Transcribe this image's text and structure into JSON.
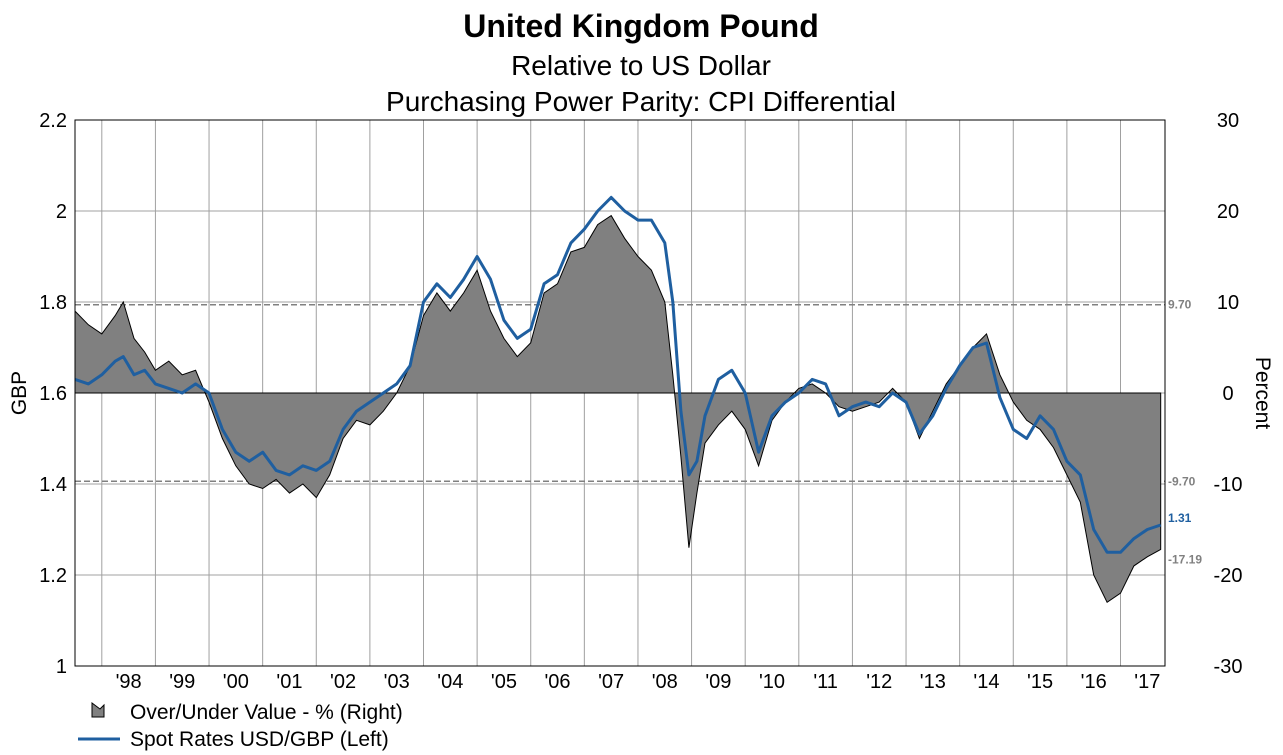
{
  "title": "United Kingdom Pound",
  "subtitle_1": "Relative to US Dollar",
  "subtitle_2": "Purchasing Power Parity: CPI Differential",
  "colors": {
    "area_fill": "#808080",
    "area_stroke": "#000000",
    "spot_line": "#1f5fa0",
    "grid": "#a0a0a0",
    "ref_line": "#808080"
  },
  "chart_data": {
    "type": "line",
    "title": "United Kingdom Pound",
    "subtitle": [
      "Relative to US Dollar",
      "Purchasing Power Parity: CPI Differential"
    ],
    "ylabel_left": "GBP",
    "ylabel_right": "Percent",
    "y_left_lim": [
      1.0,
      2.2
    ],
    "y_left_ticks": [
      "1",
      "1.2",
      "1.4",
      "1.6",
      "1.8",
      "2",
      "2.2"
    ],
    "y_left_tick_values": [
      1.0,
      1.2,
      1.4,
      1.6,
      1.8,
      2.0,
      2.2
    ],
    "y_right_lim": [
      -30,
      30
    ],
    "y_right_ticks": [
      "-30",
      "-20",
      "-10",
      "0",
      "10",
      "20",
      "30"
    ],
    "y_right_tick_values": [
      -30,
      -20,
      -10,
      0,
      10,
      20,
      30
    ],
    "x_lim": [
      1997.5,
      2017.83
    ],
    "x_tick_labels": [
      "'98",
      "'99",
      "'00",
      "'01",
      "'02",
      "'03",
      "'04",
      "'05",
      "'06",
      "'07",
      "'08",
      "'09",
      "'10",
      "'11",
      "'12",
      "'13",
      "'14",
      "'15",
      "'16",
      "'17"
    ],
    "x_tick_years": [
      1998,
      1999,
      2000,
      2001,
      2002,
      2003,
      2004,
      2005,
      2006,
      2007,
      2008,
      2009,
      2010,
      2011,
      2012,
      2013,
      2014,
      2015,
      2016,
      2017
    ],
    "grid": true,
    "legend_position": "bottom-left",
    "reference_lines": [
      {
        "axis": "right",
        "value": 9.7,
        "label": "9.70"
      },
      {
        "axis": "right",
        "value": -9.7,
        "label": "-9.70"
      }
    ],
    "end_labels": [
      {
        "series": "Spot Rates USD/GBP  (Left)",
        "label": "1.31"
      },
      {
        "series": "Over/Under Value - %  (Right)",
        "label": "-17.19"
      }
    ],
    "series": [
      {
        "name": "Over/Under Value - %  (Right)",
        "type": "area",
        "axis": "right",
        "x": [
          1997.5,
          1997.75,
          1998.0,
          1998.25,
          1998.4,
          1998.6,
          1998.8,
          1999.0,
          1999.25,
          1999.5,
          1999.75,
          2000.0,
          2000.25,
          2000.5,
          2000.75,
          2001.0,
          2001.25,
          2001.5,
          2001.75,
          2002.0,
          2002.25,
          2002.5,
          2002.75,
          2003.0,
          2003.25,
          2003.5,
          2003.75,
          2004.0,
          2004.25,
          2004.5,
          2004.75,
          2005.0,
          2005.25,
          2005.5,
          2005.75,
          2006.0,
          2006.25,
          2006.5,
          2006.75,
          2007.0,
          2007.25,
          2007.5,
          2007.75,
          2008.0,
          2008.25,
          2008.5,
          2008.65,
          2008.8,
          2008.95,
          2009.1,
          2009.25,
          2009.5,
          2009.75,
          2010.0,
          2010.25,
          2010.5,
          2010.75,
          2011.0,
          2011.25,
          2011.5,
          2011.75,
          2012.0,
          2012.25,
          2012.5,
          2012.75,
          2013.0,
          2013.25,
          2013.5,
          2013.75,
          2014.0,
          2014.25,
          2014.5,
          2014.75,
          2015.0,
          2015.25,
          2015.5,
          2015.75,
          2016.0,
          2016.25,
          2016.5,
          2016.75,
          2017.0,
          2017.25,
          2017.5,
          2017.75
        ],
        "values": [
          9.0,
          7.5,
          6.5,
          8.5,
          10.0,
          6.0,
          4.5,
          2.5,
          3.5,
          2.0,
          2.5,
          -1.0,
          -5.0,
          -8.0,
          -10.0,
          -10.5,
          -9.5,
          -11.0,
          -10.0,
          -11.5,
          -9.0,
          -5.0,
          -3.0,
          -3.5,
          -2.0,
          0.0,
          3.0,
          8.5,
          11.0,
          9.0,
          11.0,
          13.5,
          9.0,
          6.0,
          4.0,
          5.5,
          11.0,
          12.0,
          15.5,
          16.0,
          18.5,
          19.5,
          17.0,
          15.0,
          13.5,
          10.0,
          2.0,
          -7.0,
          -17.0,
          -11.0,
          -5.5,
          -3.5,
          -2.0,
          -4.0,
          -8.0,
          -3.0,
          -1.0,
          0.5,
          1.0,
          0.0,
          -1.5,
          -2.0,
          -1.5,
          -1.0,
          0.5,
          -1.0,
          -5.0,
          -2.0,
          1.0,
          3.0,
          5.0,
          6.5,
          2.0,
          -1.0,
          -3.0,
          -4.0,
          -6.0,
          -9.0,
          -12.0,
          -20.0,
          -23.0,
          -22.0,
          -19.0,
          -18.0,
          -17.19
        ]
      },
      {
        "name": "Spot Rates USD/GBP  (Left)",
        "type": "line",
        "axis": "left",
        "x": [
          1997.5,
          1997.75,
          1998.0,
          1998.25,
          1998.4,
          1998.6,
          1998.8,
          1999.0,
          1999.25,
          1999.5,
          1999.75,
          2000.0,
          2000.25,
          2000.5,
          2000.75,
          2001.0,
          2001.25,
          2001.5,
          2001.75,
          2002.0,
          2002.25,
          2002.5,
          2002.75,
          2003.0,
          2003.25,
          2003.5,
          2003.75,
          2004.0,
          2004.25,
          2004.5,
          2004.75,
          2005.0,
          2005.25,
          2005.5,
          2005.75,
          2006.0,
          2006.25,
          2006.5,
          2006.75,
          2007.0,
          2007.25,
          2007.5,
          2007.75,
          2008.0,
          2008.25,
          2008.5,
          2008.65,
          2008.8,
          2008.95,
          2009.1,
          2009.25,
          2009.5,
          2009.75,
          2010.0,
          2010.25,
          2010.5,
          2010.75,
          2011.0,
          2011.25,
          2011.5,
          2011.75,
          2012.0,
          2012.25,
          2012.5,
          2012.75,
          2013.0,
          2013.25,
          2013.5,
          2013.75,
          2014.0,
          2014.25,
          2014.5,
          2014.75,
          2015.0,
          2015.25,
          2015.5,
          2015.75,
          2016.0,
          2016.25,
          2016.5,
          2016.75,
          2017.0,
          2017.25,
          2017.5,
          2017.75
        ],
        "values": [
          1.63,
          1.62,
          1.64,
          1.67,
          1.68,
          1.64,
          1.65,
          1.62,
          1.61,
          1.6,
          1.62,
          1.6,
          1.52,
          1.47,
          1.45,
          1.47,
          1.43,
          1.42,
          1.44,
          1.43,
          1.45,
          1.52,
          1.56,
          1.58,
          1.6,
          1.62,
          1.66,
          1.8,
          1.84,
          1.81,
          1.85,
          1.9,
          1.85,
          1.76,
          1.72,
          1.74,
          1.84,
          1.86,
          1.93,
          1.96,
          2.0,
          2.03,
          2.0,
          1.98,
          1.98,
          1.93,
          1.8,
          1.56,
          1.42,
          1.45,
          1.55,
          1.63,
          1.65,
          1.6,
          1.47,
          1.55,
          1.58,
          1.6,
          1.63,
          1.62,
          1.55,
          1.57,
          1.58,
          1.57,
          1.6,
          1.58,
          1.51,
          1.55,
          1.61,
          1.66,
          1.7,
          1.71,
          1.59,
          1.52,
          1.5,
          1.55,
          1.52,
          1.45,
          1.42,
          1.3,
          1.25,
          1.25,
          1.28,
          1.3,
          1.31
        ]
      }
    ]
  },
  "legend": {
    "area_label": "Over/Under Value - %  (Right)",
    "line_label": "Spot Rates USD/GBP  (Left)"
  }
}
